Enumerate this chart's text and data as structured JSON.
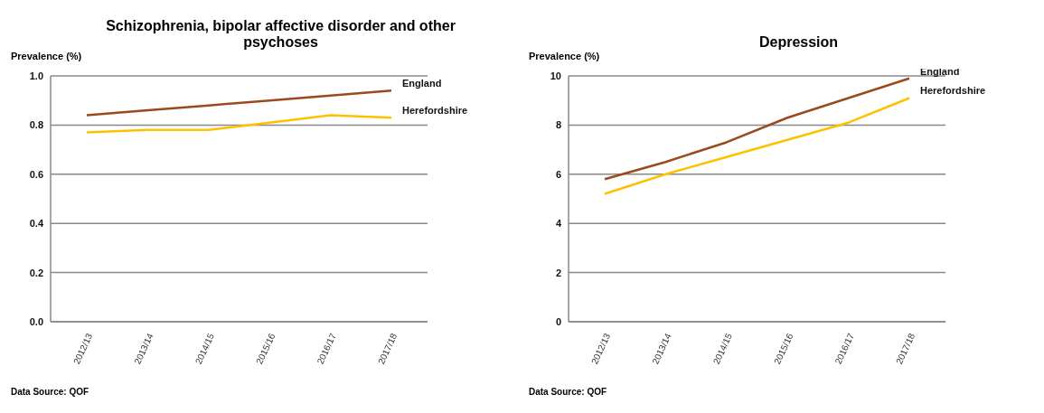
{
  "chart_data": [
    {
      "type": "line",
      "title": "Schizophrenia, bipolar affective disorder and other psychoses",
      "ylabel": "Prevalence (%)",
      "categories": [
        "2012/13",
        "2013/14",
        "2014/15",
        "2015/16",
        "2016/17",
        "2017/18"
      ],
      "series": [
        {
          "name": "England",
          "color": "#9a4a1c",
          "values": [
            0.84,
            0.86,
            0.88,
            0.9,
            0.92,
            0.94
          ]
        },
        {
          "name": "Herefordshire",
          "color": "#ffc000",
          "values": [
            0.77,
            0.78,
            0.78,
            0.81,
            0.84,
            0.83
          ]
        }
      ],
      "ylim": [
        0,
        1
      ],
      "yticks": [
        {
          "value": 0,
          "label": "0.0"
        },
        0.2,
        0.4,
        0.6,
        0.8,
        {
          "value": 1,
          "label": "1.0"
        }
      ],
      "grid": "y",
      "legend": false,
      "marker": "none",
      "annotations": [
        "Data Source: QOF"
      ]
    },
    {
      "type": "line",
      "title": "Depression",
      "ylabel": "Prevalence (%)",
      "categories": [
        "2012/13",
        "2013/14",
        "2014/15",
        "2015/16",
        "2016/17",
        "2017/18"
      ],
      "series": [
        {
          "name": "England",
          "color": "#9a4a1c",
          "values": [
            5.8,
            6.5,
            7.3,
            8.3,
            9.1,
            9.9
          ]
        },
        {
          "name": "Herefordshire",
          "color": "#ffc000",
          "values": [
            5.2,
            6.0,
            6.7,
            7.4,
            8.1,
            9.1
          ]
        }
      ],
      "ylim": [
        0,
        10
      ],
      "yticks": [
        0,
        2,
        4,
        6,
        8,
        10
      ],
      "grid": "y",
      "legend": false,
      "marker": "none",
      "annotations": [
        "Data Source: QOF"
      ]
    }
  ]
}
